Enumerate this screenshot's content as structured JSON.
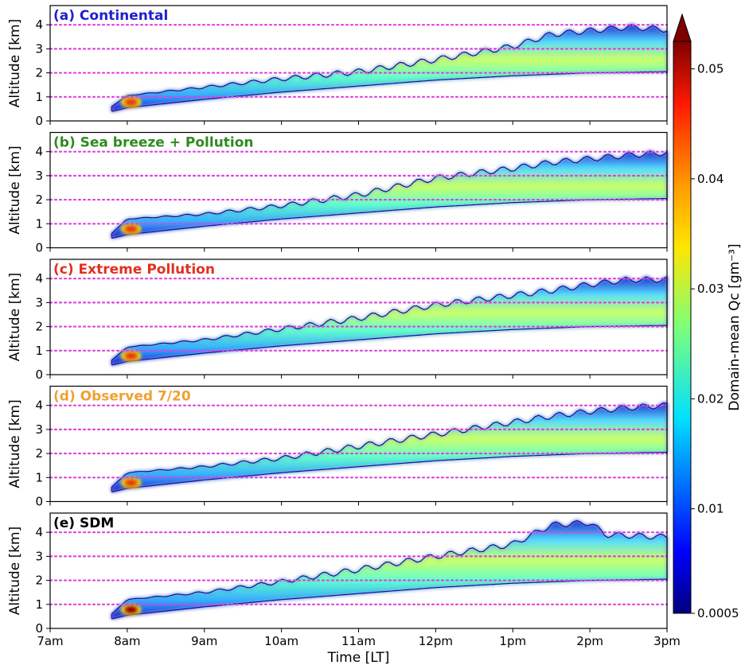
{
  "chart_data": {
    "type": "heatmap",
    "shared_x": {
      "label": "Time [LT]",
      "ticks": [
        "7am",
        "8am",
        "9am",
        "10am",
        "11am",
        "12pm",
        "1pm",
        "2pm",
        "3pm"
      ],
      "range": [
        7,
        15
      ]
    },
    "y_axis": {
      "label": "Altitude [km]",
      "ticks": [
        "0",
        "1",
        "2",
        "3",
        "4"
      ],
      "range": [
        0,
        4.8
      ]
    },
    "reference_lines_km": [
      1,
      2,
      3,
      4
    ],
    "reference_line_color": "#e040e0",
    "colorbar": {
      "label": "Domain-mean Qc [gm⁻³]",
      "ticks": [
        "0.0005",
        "0.01",
        "0.02",
        "0.03",
        "0.04",
        "0.05"
      ],
      "tick_values": [
        0.0005,
        0.01,
        0.02,
        0.03,
        0.04,
        0.05
      ],
      "range": [
        0.0005,
        0.0525
      ],
      "extend": "max",
      "colormap": "jet"
    },
    "panels": [
      {
        "title": "(a) Continental",
        "title_color": "#1f1fd0",
        "cloud_base_km": [
          [
            7.8,
            0.4
          ],
          [
            8,
            0.55
          ],
          [
            9,
            0.9
          ],
          [
            10,
            1.2
          ],
          [
            11,
            1.45
          ],
          [
            12,
            1.7
          ],
          [
            13,
            1.88
          ],
          [
            14,
            2.0
          ],
          [
            15,
            2.05
          ]
        ],
        "cloud_top_km": [
          [
            7.8,
            0.6
          ],
          [
            8,
            1.05
          ],
          [
            9,
            1.4
          ],
          [
            10,
            1.75
          ],
          [
            11,
            2.05
          ],
          [
            12,
            2.55
          ],
          [
            13,
            3.1
          ],
          [
            13.5,
            3.6
          ],
          [
            14,
            3.75
          ],
          [
            14.5,
            3.9
          ],
          [
            15,
            3.8
          ]
        ],
        "peak_qc": 0.045
      },
      {
        "title": "(b) Sea breeze + Pollution",
        "title_color": "#2e8b1e",
        "cloud_base_km": [
          [
            7.8,
            0.4
          ],
          [
            8,
            0.55
          ],
          [
            9,
            0.9
          ],
          [
            10,
            1.2
          ],
          [
            11,
            1.45
          ],
          [
            12,
            1.7
          ],
          [
            13,
            1.88
          ],
          [
            14,
            2.0
          ],
          [
            15,
            2.05
          ]
        ],
        "cloud_top_km": [
          [
            7.8,
            0.6
          ],
          [
            8,
            1.2
          ],
          [
            9,
            1.4
          ],
          [
            10,
            1.75
          ],
          [
            11,
            2.2
          ],
          [
            12,
            2.9
          ],
          [
            13,
            3.3
          ],
          [
            13.5,
            3.55
          ],
          [
            14,
            3.7
          ],
          [
            14.5,
            3.85
          ],
          [
            15,
            3.95
          ]
        ],
        "peak_qc": 0.042
      },
      {
        "title": "(c) Extreme Pollution",
        "title_color": "#e03020",
        "cloud_base_km": [
          [
            7.8,
            0.4
          ],
          [
            8,
            0.55
          ],
          [
            9,
            0.9
          ],
          [
            10,
            1.2
          ],
          [
            11,
            1.45
          ],
          [
            12,
            1.7
          ],
          [
            13,
            1.88
          ],
          [
            14,
            2.0
          ],
          [
            15,
            2.05
          ]
        ],
        "cloud_top_km": [
          [
            7.8,
            0.6
          ],
          [
            8,
            1.15
          ],
          [
            9,
            1.45
          ],
          [
            10,
            1.9
          ],
          [
            11,
            2.35
          ],
          [
            12,
            2.9
          ],
          [
            13,
            3.3
          ],
          [
            13.5,
            3.5
          ],
          [
            14,
            3.75
          ],
          [
            14.5,
            3.95
          ],
          [
            15,
            3.95
          ]
        ],
        "peak_qc": 0.04
      },
      {
        "title": "(d) Observed 7/20",
        "title_color": "#f0a030",
        "cloud_base_km": [
          [
            7.8,
            0.4
          ],
          [
            8,
            0.55
          ],
          [
            9,
            0.9
          ],
          [
            10,
            1.2
          ],
          [
            11,
            1.45
          ],
          [
            12,
            1.7
          ],
          [
            13,
            1.88
          ],
          [
            14,
            2.0
          ],
          [
            15,
            2.05
          ]
        ],
        "cloud_top_km": [
          [
            7.8,
            0.6
          ],
          [
            8,
            1.2
          ],
          [
            9,
            1.45
          ],
          [
            10,
            1.8
          ],
          [
            11,
            2.3
          ],
          [
            12,
            2.8
          ],
          [
            13,
            3.3
          ],
          [
            13.5,
            3.55
          ],
          [
            14,
            3.75
          ],
          [
            14.5,
            3.9
          ],
          [
            15,
            4.0
          ]
        ],
        "peak_qc": 0.04
      },
      {
        "title": "(e) SDM",
        "title_color": "#000000",
        "cloud_base_km": [
          [
            7.8,
            0.4
          ],
          [
            8,
            0.55
          ],
          [
            9,
            0.9
          ],
          [
            10,
            1.2
          ],
          [
            11,
            1.45
          ],
          [
            12,
            1.7
          ],
          [
            13,
            1.88
          ],
          [
            14,
            2.0
          ],
          [
            15,
            2.05
          ]
        ],
        "cloud_top_km": [
          [
            7.8,
            0.6
          ],
          [
            8,
            1.2
          ],
          [
            9,
            1.5
          ],
          [
            10,
            1.95
          ],
          [
            11,
            2.45
          ],
          [
            12,
            3.0
          ],
          [
            13,
            3.5
          ],
          [
            13.5,
            4.3
          ],
          [
            14,
            4.4
          ],
          [
            14.2,
            3.9
          ],
          [
            15,
            3.8
          ]
        ],
        "peak_qc": 0.0525
      }
    ]
  }
}
